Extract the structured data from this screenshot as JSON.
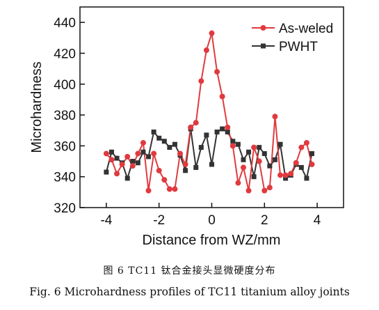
{
  "chart_data": {
    "type": "line",
    "title": "",
    "xlabel": "Distance from WZ/mm",
    "ylabel": "Microhardness",
    "xlim": [
      -5,
      5
    ],
    "ylim": [
      320,
      450
    ],
    "xticks": [
      -4,
      -2,
      0,
      2,
      4
    ],
    "yticks": [
      320,
      340,
      360,
      380,
      400,
      420,
      440
    ],
    "grid": false,
    "legend_position": "top-right",
    "series": [
      {
        "name": "As-weled",
        "color": "#e03a3e",
        "marker": "circle",
        "x": [
          -4.0,
          -3.8,
          -3.6,
          -3.4,
          -3.2,
          -3.0,
          -2.8,
          -2.6,
          -2.4,
          -2.2,
          -2.0,
          -1.8,
          -1.6,
          -1.4,
          -1.2,
          -1.0,
          -0.8,
          -0.6,
          -0.4,
          -0.2,
          0.0,
          0.2,
          0.4,
          0.6,
          0.8,
          1.0,
          1.2,
          1.4,
          1.6,
          1.8,
          2.0,
          2.2,
          2.4,
          2.6,
          2.8,
          3.0,
          3.2,
          3.4,
          3.6,
          3.8
        ],
        "y": [
          355,
          351,
          342,
          348,
          353,
          347,
          355,
          362,
          331,
          355,
          344,
          338,
          332,
          332,
          355,
          348,
          372,
          375,
          402,
          422,
          433,
          408,
          392,
          372,
          360,
          336,
          346,
          331,
          359,
          350,
          331,
          333,
          379,
          341,
          341,
          342,
          349,
          359,
          362,
          348
        ]
      },
      {
        "name": "PWHT",
        "color": "#333333",
        "marker": "square",
        "x": [
          -4.0,
          -3.8,
          -3.6,
          -3.4,
          -3.2,
          -3.0,
          -2.8,
          -2.6,
          -2.4,
          -2.2,
          -2.0,
          -1.8,
          -1.6,
          -1.4,
          -1.2,
          -1.0,
          -0.8,
          -0.6,
          -0.4,
          -0.2,
          0.0,
          0.2,
          0.4,
          0.6,
          0.8,
          1.0,
          1.2,
          1.4,
          1.6,
          1.8,
          2.0,
          2.2,
          2.4,
          2.6,
          2.8,
          3.0,
          3.2,
          3.4,
          3.6,
          3.8
        ],
        "y": [
          343,
          356,
          352,
          349,
          339,
          350,
          349,
          356,
          353,
          369,
          365,
          363,
          359,
          361,
          354,
          344,
          371,
          346,
          359,
          367,
          348,
          369,
          371,
          369,
          363,
          361,
          351,
          356,
          340,
          359,
          355,
          347,
          351,
          361,
          339,
          341,
          348,
          346,
          339,
          355
        ]
      }
    ]
  },
  "caption": {
    "cn": "图 6   TC11 钛合金接头显微硬度分布",
    "en": "Fig. 6   Microhardness profiles of TC11 titanium alloy joints"
  }
}
